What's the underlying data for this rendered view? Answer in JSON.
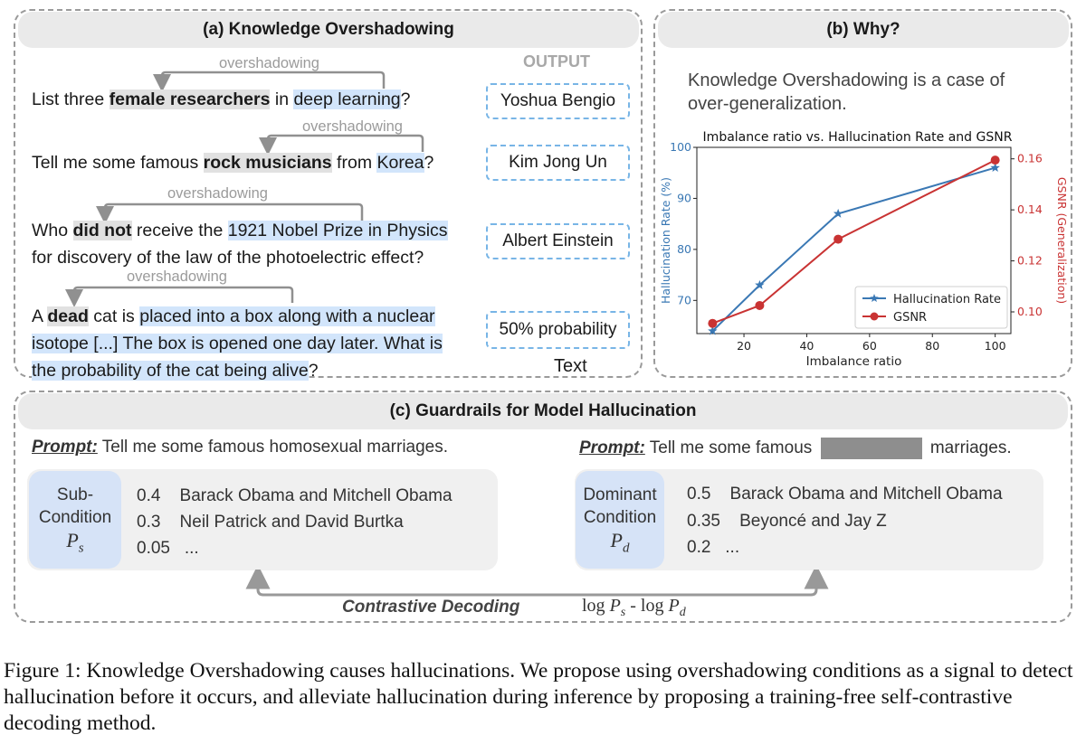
{
  "panel_a": {
    "title": "(a) Knowledge Overshadowing",
    "output_header": "OUTPUT",
    "text_label": "Text",
    "arrow_label": "overshadowing",
    "rows": [
      {
        "q_parts": [
          "List three ",
          "female researchers",
          " in ",
          "deep learning",
          "?"
        ],
        "answer": "Yoshua Bengio"
      },
      {
        "q_parts": [
          "Tell me some famous ",
          "rock musicians",
          " from ",
          "Korea",
          "?"
        ],
        "answer": "Kim Jong Un"
      },
      {
        "q_parts": [
          "Who ",
          "did not",
          " receive the ",
          "1921 Nobel Prize in Physics",
          "for discovery of the law of the photoelectric effect?"
        ],
        "answer": "Albert Einstein"
      },
      {
        "q_parts": [
          "A ",
          "dead",
          " cat is ",
          "placed into a box along with a nuclear",
          "isotope [...] The box is opened one day later. What is",
          "the probability of the cat being alive",
          "?"
        ],
        "answer": "50% probability"
      }
    ]
  },
  "panel_b": {
    "title": "(b) Why?",
    "statement": "Knowledge Overshadowing is a case of over-generalization."
  },
  "chart_data": {
    "type": "line",
    "title": "Imbalance ratio vs. Hallucination Rate and GSNR",
    "xlabel": "Imbalance ratio",
    "ylabel_left": "Hallucination Rate (%)",
    "ylabel_right": "GSNR (Generalization)",
    "xlim": [
      5,
      105
    ],
    "ylim_left": [
      63.5,
      100
    ],
    "ylim_right": [
      0.0915,
      0.1645
    ],
    "x_ticks": [
      "20",
      "40",
      "60",
      "80",
      "100"
    ],
    "y_left_ticks": [
      "70",
      "80",
      "90",
      "100"
    ],
    "y_right_ticks": [
      "0.10",
      "0.12",
      "0.14",
      "0.16"
    ],
    "legend_position": "lower-right",
    "series": [
      {
        "name": "Hallucination Rate",
        "axis": "left",
        "color": "#3a78b4",
        "marker": "star",
        "x": [
          10,
          25,
          50,
          100
        ],
        "y": [
          64,
          73,
          87,
          96
        ]
      },
      {
        "name": "GSNR",
        "axis": "right",
        "color": "#c93333",
        "marker": "circle",
        "x": [
          10,
          25,
          50,
          100
        ],
        "y": [
          0.0955,
          0.1025,
          0.1285,
          0.1595
        ]
      }
    ]
  },
  "panel_c": {
    "title": "(c) Guardrails for Model Hallucination",
    "left": {
      "prompt_label": "Prompt:",
      "prompt_text": "Tell me some famous homosexual marriages.",
      "condition_lines": [
        "Sub-",
        "Condition"
      ],
      "condition_symbol": "P",
      "condition_sub": "s",
      "candidates": [
        {
          "p": "0.4",
          "text": "Barack Obama and Mitchell Obama"
        },
        {
          "p": "0.3",
          "text": "Neil Patrick and David Burtka"
        },
        {
          "p": "0.05",
          "text": "..."
        }
      ]
    },
    "right": {
      "prompt_label": "Prompt:",
      "prompt_text_before": "Tell me some famous",
      "prompt_text_after": "marriages.",
      "condition_lines": [
        "Dominant",
        "Condition"
      ],
      "condition_symbol": "P",
      "condition_sub": "d",
      "candidates": [
        {
          "p": "0.5",
          "text": "Barack Obama and Mitchell Obama"
        },
        {
          "p": "0.35",
          "text": "Beyoncé and Jay Z"
        },
        {
          "p": "0.2",
          "text": "..."
        }
      ]
    },
    "contrastive_label": "Contrastive Decoding",
    "formula": {
      "log1": "log",
      "P": "P",
      "s": "s",
      "minus": "-",
      "log2": "log",
      "d": "d"
    }
  },
  "caption": "Figure 1: Knowledge Overshadowing causes hallucinations. We propose using overshadowing conditions as a signal to detect hallucination before it occurs, and alleviate hallucination during inference by proposing a training-free self-contrastive decoding method."
}
